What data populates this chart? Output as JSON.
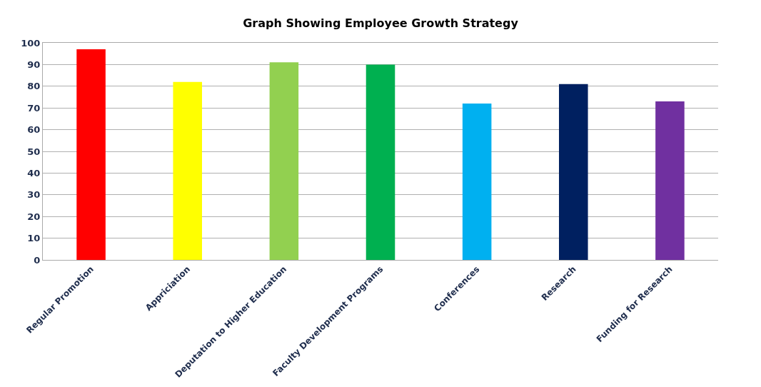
{
  "chart_data": {
    "type": "bar",
    "title": "Graph Showing Employee Growth Strategy",
    "categories": [
      "Regular Promotion",
      "Appriciation",
      "Deputation to Higher Education",
      "Faculty Development Programs",
      "Conferences",
      "Research",
      "Funding for Research"
    ],
    "values": [
      97,
      82,
      91,
      90,
      72,
      81,
      73
    ],
    "colors": [
      "#ff0000",
      "#ffff00",
      "#92d050",
      "#00b050",
      "#00b0f0",
      "#002060",
      "#7030a0"
    ],
    "ylim": [
      0,
      100
    ],
    "yticks": [
      0,
      10,
      20,
      30,
      40,
      50,
      60,
      70,
      80,
      90,
      100
    ],
    "grid": "y"
  }
}
